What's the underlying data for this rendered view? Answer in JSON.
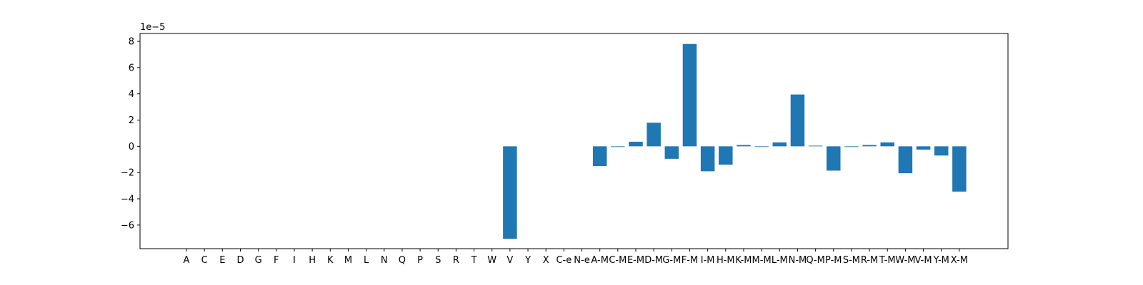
{
  "chart_data": {
    "type": "bar",
    "title": "",
    "xlabel": "",
    "ylabel": "",
    "y_offset_label": "1e−5",
    "ylim": [
      -7.8,
      8.6
    ],
    "yticks": [
      -6,
      -4,
      -2,
      0,
      2,
      4,
      6,
      8
    ],
    "ytick_labels": [
      "−6",
      "−4",
      "−2",
      "0",
      "2",
      "4",
      "6",
      "8"
    ],
    "grid": false,
    "bar_color": "#1f77b4",
    "categories": [
      "A",
      "C",
      "E",
      "D",
      "G",
      "F",
      "I",
      "H",
      "K",
      "M",
      "L",
      "N",
      "Q",
      "P",
      "S",
      "R",
      "T",
      "W",
      "V",
      "Y",
      "X",
      "C-e",
      "N-e",
      "A-M",
      "C-M",
      "E-M",
      "D-M",
      "G-M",
      "F-M",
      "I-M",
      "H-M",
      "K-M",
      "M-M",
      "L-M",
      "N-M",
      "Q-M",
      "P-M",
      "S-M",
      "R-M",
      "T-M",
      "W-M",
      "V-M",
      "Y-M",
      "X-M"
    ],
    "values": [
      0,
      0,
      0,
      0,
      0,
      0,
      0,
      0,
      0,
      0,
      0,
      0,
      0,
      0,
      0,
      0,
      0,
      0,
      -7.05,
      0,
      0,
      0,
      0,
      -1.5,
      -0.05,
      0.35,
      1.8,
      -0.95,
      7.8,
      -1.9,
      -1.4,
      0.1,
      -0.05,
      0.3,
      3.95,
      0.05,
      -1.85,
      -0.05,
      0.1,
      0.3,
      -2.05,
      -0.25,
      -0.7,
      -3.45
    ]
  }
}
